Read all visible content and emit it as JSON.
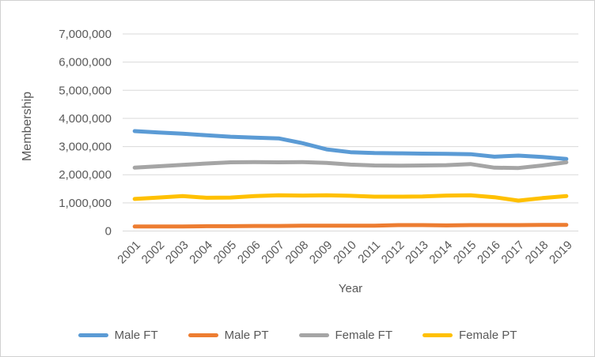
{
  "colors": {
    "grid": "#D9D9D9",
    "text": "#595959",
    "border": "#D1D1D1",
    "background": "#FFFFFF"
  },
  "chart_data": {
    "type": "line",
    "title": "",
    "xlabel": "Year",
    "ylabel": "Membership",
    "ylim": [
      0,
      7000000
    ],
    "y_tick_step": 1000000,
    "y_tick_labels": [
      "0",
      "1,000,000",
      "2,000,000",
      "3,000,000",
      "4,000,000",
      "5,000,000",
      "6,000,000",
      "7,000,000"
    ],
    "grid": true,
    "legend_position": "bottom",
    "x_tick_rotation": -45,
    "categories": [
      "2001",
      "2002",
      "2003",
      "2004",
      "2005",
      "2006",
      "2007",
      "2008",
      "2009",
      "2010",
      "2011",
      "2012",
      "2013",
      "2014",
      "2015",
      "2016",
      "2017",
      "2018",
      "2019"
    ],
    "series": [
      {
        "name": "Male FT",
        "color": "#5B9BD5",
        "values": [
          3550000,
          3500000,
          3460000,
          3400000,
          3350000,
          3320000,
          3290000,
          3120000,
          2900000,
          2800000,
          2770000,
          2760000,
          2750000,
          2740000,
          2730000,
          2640000,
          2680000,
          2630000,
          2560000
        ]
      },
      {
        "name": "Male PT",
        "color": "#ED7D31",
        "values": [
          160000,
          160000,
          160000,
          170000,
          170000,
          180000,
          180000,
          190000,
          190000,
          190000,
          190000,
          210000,
          210000,
          200000,
          210000,
          210000,
          210000,
          215000,
          220000
        ]
      },
      {
        "name": "Female FT",
        "color": "#A5A5A5",
        "values": [
          2250000,
          2300000,
          2350000,
          2400000,
          2440000,
          2450000,
          2440000,
          2450000,
          2420000,
          2360000,
          2330000,
          2320000,
          2330000,
          2340000,
          2380000,
          2250000,
          2240000,
          2330000,
          2440000
        ]
      },
      {
        "name": "Female PT",
        "color": "#FFC000",
        "values": [
          1140000,
          1190000,
          1240000,
          1180000,
          1190000,
          1240000,
          1270000,
          1260000,
          1270000,
          1250000,
          1220000,
          1220000,
          1230000,
          1260000,
          1270000,
          1200000,
          1080000,
          1170000,
          1240000
        ]
      }
    ]
  }
}
